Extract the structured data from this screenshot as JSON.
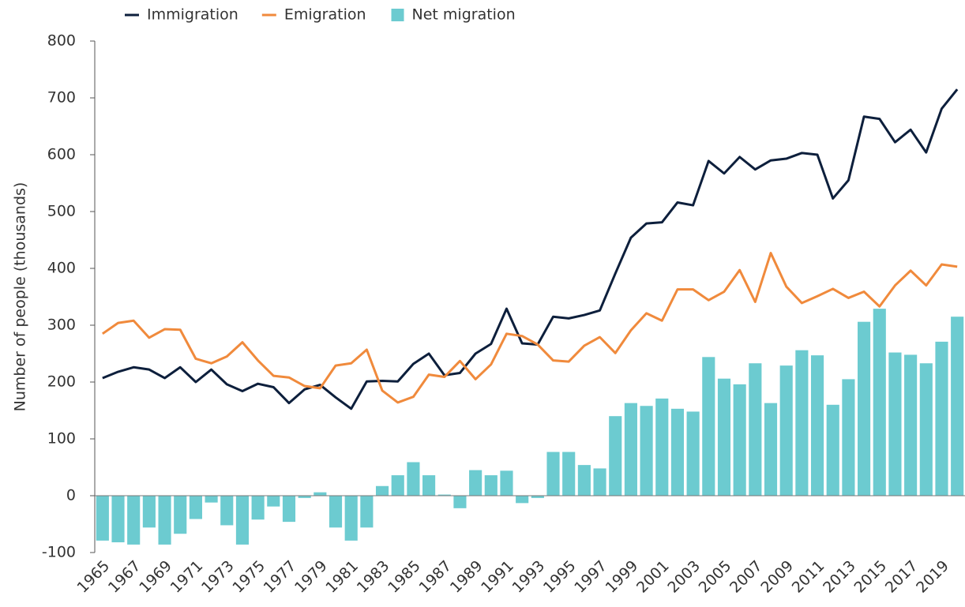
{
  "chart_data": {
    "type": "combo",
    "y_label": "Number of people (thousands)",
    "categories": [
      "1965",
      null,
      "1967",
      null,
      "1969",
      null,
      "1971",
      null,
      "1973",
      null,
      "1975",
      null,
      "1977",
      null,
      "1979",
      null,
      "1981",
      null,
      "1983",
      null,
      "1985",
      null,
      "1987",
      null,
      "1989",
      null,
      "1991",
      null,
      "1993",
      null,
      "1995",
      null,
      "1997",
      null,
      "1999",
      null,
      "2001",
      null,
      "2003",
      null,
      "2005",
      null,
      "2007",
      null,
      "2009",
      null,
      "2011",
      null,
      "2013",
      null,
      "2015",
      null,
      "2017",
      null,
      "2019",
      null
    ],
    "series": [
      {
        "name": "Immigration",
        "type": "line",
        "color": "#0d1f3c",
        "values": [
          207,
          218,
          226,
          222,
          207,
          226,
          200,
          222,
          196,
          184,
          197,
          191,
          163,
          187,
          195,
          173,
          153,
          201,
          202,
          201,
          232,
          250,
          212,
          216,
          250,
          267,
          329,
          268,
          266,
          315,
          312,
          318,
          326,
          391,
          454,
          479,
          481,
          516,
          511,
          589,
          567,
          596,
          574,
          590,
          593,
          603,
          600,
          523,
          555,
          667,
          663,
          622,
          644,
          604,
          681,
          715
        ]
      },
      {
        "name": "Emigration",
        "type": "line",
        "color": "#f08a3c",
        "values": [
          285,
          304,
          308,
          278,
          293,
          292,
          241,
          233,
          245,
          270,
          238,
          211,
          208,
          193,
          189,
          229,
          233,
          257,
          185,
          164,
          174,
          213,
          209,
          237,
          205,
          231,
          285,
          281,
          266,
          238,
          236,
          264,
          279,
          251,
          291,
          321,
          308,
          363,
          363,
          344,
          359,
          397,
          341,
          427,
          368,
          339,
          351,
          364,
          348,
          359,
          333,
          370,
          396,
          370,
          407,
          403
        ]
      },
      {
        "name": "Net migration",
        "type": "bar",
        "color": "#6ccbd0",
        "values": [
          -79,
          -82,
          -86,
          -56,
          -86,
          -67,
          -41,
          -12,
          -52,
          -86,
          -42,
          -19,
          -46,
          -4,
          6,
          -56,
          -79,
          -56,
          17,
          36,
          59,
          36,
          2,
          -22,
          45,
          36,
          44,
          -13,
          -4,
          77,
          77,
          54,
          48,
          140,
          163,
          158,
          171,
          153,
          148,
          244,
          206,
          196,
          233,
          163,
          229,
          256,
          247,
          160,
          205,
          306,
          329,
          252,
          248,
          233,
          271,
          315
        ]
      }
    ],
    "ylim": [
      -100,
      800
    ],
    "yticks": [
      -100,
      0,
      100,
      200,
      300,
      400,
      500,
      600,
      700,
      800
    ]
  }
}
